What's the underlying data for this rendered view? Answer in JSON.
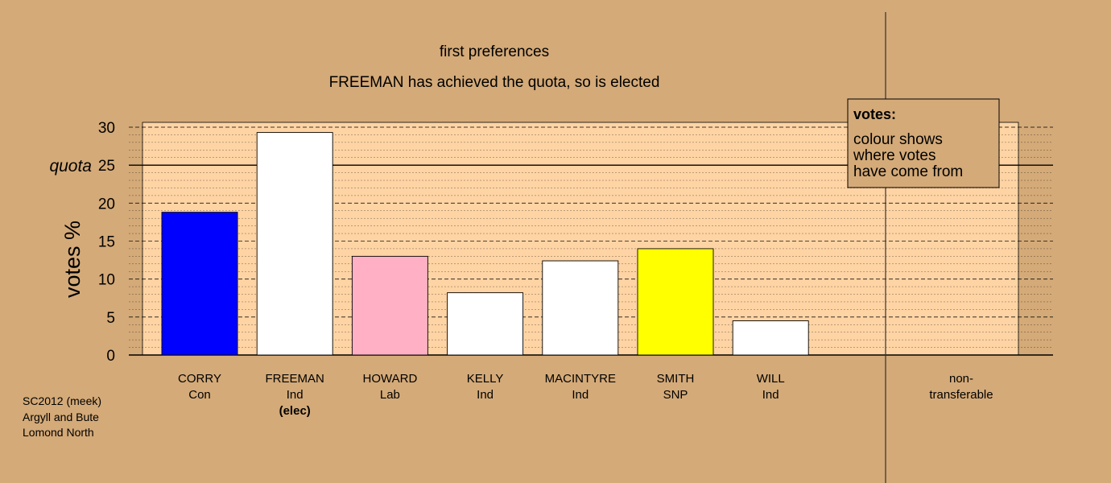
{
  "chart_data": {
    "type": "bar",
    "title": "first preferences",
    "subtitle": "FREEMAN has achieved the quota, so is elected",
    "ylabel": "votes %",
    "ylim": [
      0,
      30
    ],
    "yticks": [
      0,
      5,
      10,
      15,
      20,
      25,
      30
    ],
    "quota": 25,
    "quota_label": "quota",
    "grid": true,
    "categories": [
      {
        "name": "CORRY",
        "party": "Con",
        "note": "",
        "value": 18.8,
        "color": "#0000ff"
      },
      {
        "name": "FREEMAN",
        "party": "Ind",
        "note": "(elec)",
        "value": 29.3,
        "color": "#ffffff"
      },
      {
        "name": "HOWARD",
        "party": "Lab",
        "note": "",
        "value": 13.0,
        "color": "#ffb0c4"
      },
      {
        "name": "KELLY",
        "party": "Ind",
        "note": "",
        "value": 8.2,
        "color": "#ffffff"
      },
      {
        "name": "MACINTYRE",
        "party": "Ind",
        "note": "",
        "value": 12.4,
        "color": "#ffffff"
      },
      {
        "name": "SMITH",
        "party": "SNP",
        "note": "",
        "value": 14.0,
        "color": "#ffff00"
      },
      {
        "name": "WILL",
        "party": "Ind",
        "note": "",
        "value": 4.5,
        "color": "#ffffff"
      }
    ],
    "nontransferable": {
      "line1": "non-",
      "line2": "transferable",
      "value": 0
    },
    "legend": {
      "placement": "top-right",
      "title": "votes:",
      "lines": [
        "colour shows",
        "where votes",
        "have come from"
      ]
    }
  },
  "footer": [
    "SC2012 (meek)",
    "Argyll and Bute",
    "Lomond North"
  ]
}
